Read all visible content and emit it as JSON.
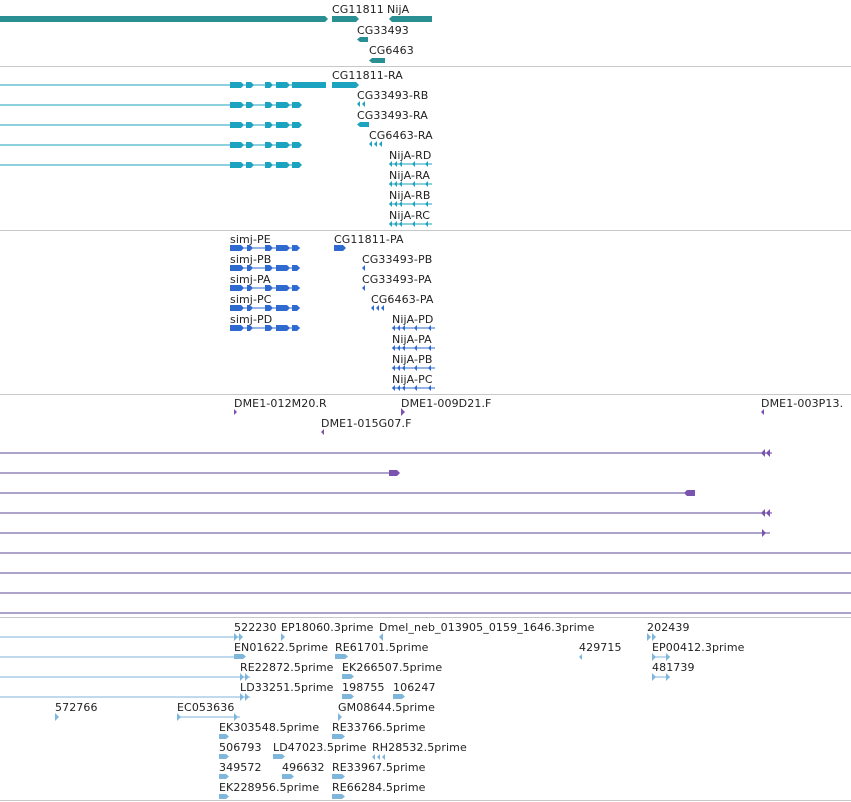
{
  "colors": {
    "gene": "#2a8f92",
    "transcript": "#1ba3c0",
    "protein": "#2f6ad0",
    "clone": "#7a52b0",
    "clone_line": "#5b4596",
    "est": "#7fb6dc",
    "separator": "#c8c8c8"
  },
  "tracks": {
    "genes": {
      "labels": [
        "CG11811",
        "NijA",
        "CG33493",
        "CG6463"
      ]
    },
    "transcripts": {
      "labels": [
        "CG11811-RA",
        "CG33493-RB",
        "CG33493-RA",
        "CG6463-RA",
        "NijA-RD",
        "NijA-RA",
        "NijA-RB",
        "NijA-RC"
      ]
    },
    "proteins": {
      "labels": [
        "simj-PE",
        "simj-PB",
        "simj-PA",
        "simj-PC",
        "simj-PD",
        "CG11811-PA",
        "CG33493-PB",
        "CG33493-PA",
        "CG6463-PA",
        "NijA-PD",
        "NijA-PA",
        "NijA-PB",
        "NijA-PC"
      ]
    },
    "clones": {
      "labels": [
        "DME1-012M20.R",
        "DME1-009D21.F",
        "DME1-003P13.",
        "DME1-015G07.F"
      ]
    },
    "ests": {
      "labels": [
        "522230",
        "EP18060.3prime",
        "Dmel_neb_013905_0159_1646.3prime",
        "202439",
        "EN01622.5prime",
        "RE61701.5prime",
        "429715",
        "EP00412.3prime",
        "RE22872.5prime",
        "EK266507.5prime",
        "481739",
        "LD33251.5prime",
        "198755",
        "106247",
        "572766",
        "EC053636",
        "GM08644.5prime",
        "EK303548.5prime",
        "RE33766.5prime",
        "506793",
        "LD47023.5prime",
        "RH28532.5prime",
        "349572",
        "496632",
        "RE33967.5prime",
        "EK228956.5prime",
        "RE66284.5prime"
      ]
    }
  }
}
